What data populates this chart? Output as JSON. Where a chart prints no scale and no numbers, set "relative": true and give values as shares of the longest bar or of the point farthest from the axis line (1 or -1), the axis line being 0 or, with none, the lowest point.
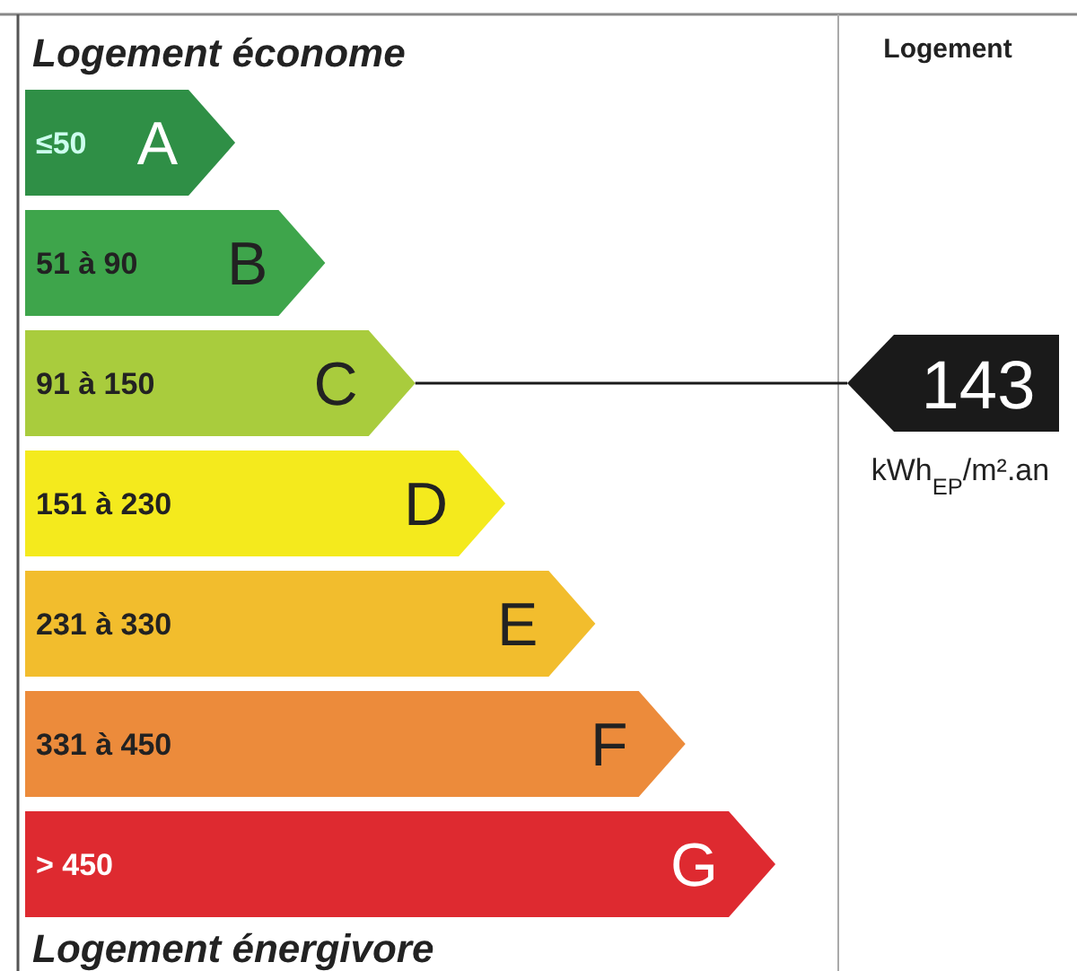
{
  "chart_data": {
    "type": "bar",
    "orientation": "horizontal",
    "relative": true,
    "values": [
      0.28,
      0.4,
      0.52,
      0.64,
      0.76,
      0.88,
      1
    ],
    "title": "Logement économe",
    "xlabel": "Logement énergivore",
    "y2label": "Logement",
    "ref_lines": [
      {
        "axis": "y",
        "value": "91 à 150",
        "label": "143",
        "color": "#1a1a1a"
      }
    ],
    "categories": [
      "≤50",
      "51 à 90",
      "91 à 150",
      "151 à 230",
      "231 à 330",
      "331 à 450",
      "> 450"
    ],
    "colors": [
      "#2f8f46",
      "#3ea54b",
      "#a9cc3d",
      "#f4ea1d",
      "#f2bd2d",
      "#ec8b3b",
      "#de2a30"
    ],
    "annotations": [
      {
        "text": "A",
        "y": "≤50"
      },
      {
        "text": "B",
        "y": "51 à 90"
      },
      {
        "text": "C",
        "y": "91 à 150"
      },
      {
        "text": "D",
        "y": "151 à 230"
      },
      {
        "text": "E",
        "y": "231 à 330"
      },
      {
        "text": "F",
        "y": "331 à 450"
      },
      {
        "text": "G",
        "y": "> 450"
      },
      "kWh$_{EP}$/m².an"
    ]
  }
}
